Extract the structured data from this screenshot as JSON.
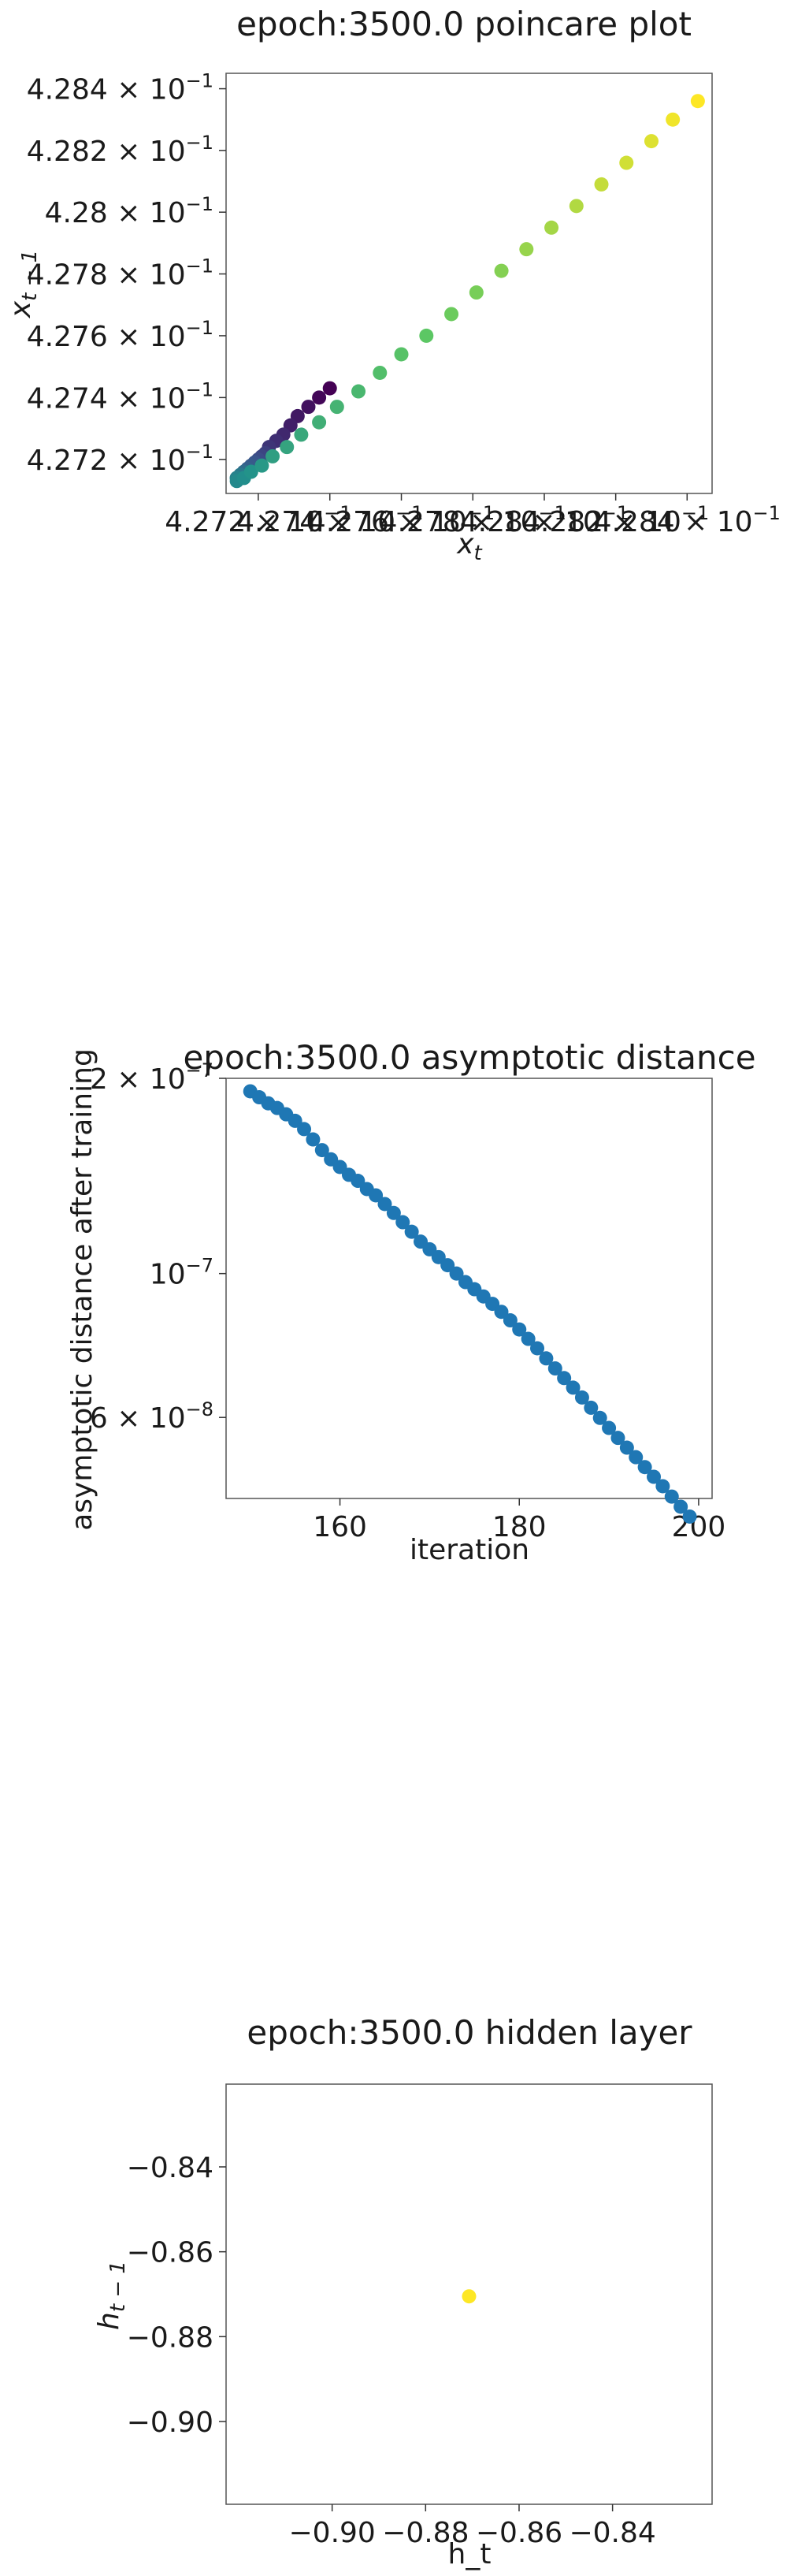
{
  "chart_data": [
    {
      "type": "scatter",
      "title": "epoch:3500.0 poincare plot",
      "xlabel": "x_t",
      "ylabel": "x_{t-1}",
      "scale": "log",
      "xlim": [
        0.42711,
        0.42847
      ],
      "ylim": [
        0.42709,
        0.42845
      ],
      "colormap": "viridis",
      "yticks": [
        {
          "value": 0.4272,
          "label": "4.272 × 10^-1"
        },
        {
          "value": 0.4274,
          "label": "4.274 × 10^-1"
        },
        {
          "value": 0.4276,
          "label": "4.276 × 10^-1"
        },
        {
          "value": 0.4278,
          "label": "4.278 × 10^-1"
        },
        {
          "value": 0.428,
          "label": "4.28 × 10^-1"
        },
        {
          "value": 0.4282,
          "label": "4.282 × 10^-1"
        },
        {
          "value": 0.4284,
          "label": "4.284 × 10^-1"
        }
      ],
      "xticks": [
        {
          "value": 0.4272,
          "label": "4.272 × 10^-1"
        },
        {
          "value": 0.4274,
          "label": "4.274 × 10^-1"
        },
        {
          "value": 0.4276,
          "label": "4.276 × 10^-1"
        },
        {
          "value": 0.4278,
          "label": "4.278 × 10^-1"
        },
        {
          "value": 0.428,
          "label": "4.28 × 10^-1"
        },
        {
          "value": 0.4282,
          "label": "4.282 × 10^-1"
        },
        {
          "value": 0.4284,
          "label": "4.284 × 10^-1"
        }
      ],
      "x": [
        0.4274,
        0.42737,
        0.42734,
        0.42731,
        0.42729,
        0.42727,
        0.42725,
        0.42723,
        0.42722,
        0.42721,
        0.4272,
        0.42719,
        0.42718,
        0.42717,
        0.42716,
        0.42716,
        0.42715,
        0.42715,
        0.42714,
        0.42714,
        0.42714,
        0.42716,
        0.42718,
        0.42721,
        0.42724,
        0.42728,
        0.42732,
        0.42737,
        0.42742,
        0.42748,
        0.42754,
        0.4276,
        0.42767,
        0.42774,
        0.42781,
        0.42788,
        0.42795,
        0.42802,
        0.42809,
        0.42816,
        0.42823,
        0.4283,
        0.42836,
        0.42843
      ],
      "y": [
        0.42743,
        0.4274,
        0.42737,
        0.42734,
        0.42731,
        0.42728,
        0.42726,
        0.42724,
        0.42722,
        0.42721,
        0.4272,
        0.42719,
        0.42718,
        0.42717,
        0.42716,
        0.42716,
        0.42715,
        0.42715,
        0.42714,
        0.42714,
        0.42713,
        0.42714,
        0.42716,
        0.42718,
        0.42721,
        0.42724,
        0.42728,
        0.42732,
        0.42737,
        0.42742,
        0.42748,
        0.42754,
        0.4276,
        0.42767,
        0.42774,
        0.42781,
        0.42788,
        0.42795,
        0.42802,
        0.42809,
        0.42816,
        0.42823,
        0.4283,
        0.42836
      ],
      "color_values": [
        0,
        0.02,
        0.05,
        0.07,
        0.09,
        0.12,
        0.14,
        0.16,
        0.19,
        0.21,
        0.23,
        0.26,
        0.28,
        0.3,
        0.33,
        0.35,
        0.37,
        0.4,
        0.42,
        0.44,
        0.47,
        0.49,
        0.51,
        0.53,
        0.56,
        0.58,
        0.6,
        0.63,
        0.65,
        0.67,
        0.7,
        0.72,
        0.74,
        0.77,
        0.79,
        0.81,
        0.84,
        0.86,
        0.88,
        0.91,
        0.93,
        0.95,
        0.98,
        1.0
      ]
    },
    {
      "type": "scatter",
      "title": "epoch:3500.0 asymptotic distance",
      "xlabel": "iteration",
      "ylabel": "asymptotic distance after training",
      "yscale": "log",
      "xlim": [
        147.3,
        201.5
      ],
      "ylim": [
        4.5e-08,
        2e-07
      ],
      "color": "#1f77b4",
      "xticks": [
        {
          "value": 160,
          "label": "160"
        },
        {
          "value": 180,
          "label": "180"
        },
        {
          "value": 200,
          "label": "200"
        }
      ],
      "yticks": [
        {
          "value": 6e-08,
          "label": "6 × 10^-8"
        },
        {
          "value": 1e-07,
          "label": "10^-7"
        },
        {
          "value": 2e-07,
          "label": "2 × 10^-7"
        }
      ],
      "x": [
        150,
        151,
        152,
        153,
        154,
        155,
        156,
        157,
        158,
        159,
        160,
        161,
        162,
        163,
        164,
        165,
        166,
        167,
        168,
        169,
        170,
        171,
        172,
        173,
        174,
        175,
        176,
        177,
        178,
        179,
        180,
        181,
        182,
        183,
        184,
        185,
        186,
        187,
        188,
        189,
        190,
        191,
        192,
        193,
        194,
        195,
        196,
        197,
        198,
        199
      ],
      "y": [
        1.91e-07,
        1.87e-07,
        1.83e-07,
        1.8e-07,
        1.76e-07,
        1.72e-07,
        1.67e-07,
        1.61e-07,
        1.55e-07,
        1.5e-07,
        1.46e-07,
        1.42e-07,
        1.39e-07,
        1.35e-07,
        1.32e-07,
        1.28e-07,
        1.24e-07,
        1.2e-07,
        1.16e-07,
        1.12e-07,
        1.09e-07,
        1.06e-07,
        1.03e-07,
        1e-07,
        9.7e-08,
        9.46e-08,
        9.22e-08,
        8.98e-08,
        8.73e-08,
        8.47e-08,
        8.2e-08,
        7.93e-08,
        7.67e-08,
        7.4e-08,
        7.14e-08,
        6.9e-08,
        6.67e-08,
        6.44e-08,
        6.21e-08,
        5.99e-08,
        5.78e-08,
        5.58e-08,
        5.39e-08,
        5.21e-08,
        5.03e-08,
        4.86e-08,
        4.7e-08,
        4.53e-08,
        4.37e-08,
        4.22e-08
      ]
    },
    {
      "type": "scatter",
      "title": "epoch:3500.0 hidden layer",
      "xlabel": "h_t",
      "ylabel": "h_{t-1}",
      "xlim": [
        -0.9227,
        -0.8187
      ],
      "ylim": [
        -0.9195,
        -0.8205
      ],
      "color": "#fde725",
      "xticks": [
        {
          "value": -0.9,
          "label": "−0.90"
        },
        {
          "value": -0.88,
          "label": "−0.88"
        },
        {
          "value": -0.86,
          "label": "−0.86"
        },
        {
          "value": -0.84,
          "label": "−0.84"
        }
      ],
      "yticks": [
        {
          "value": -0.84,
          "label": "−0.84"
        },
        {
          "value": -0.86,
          "label": "−0.86"
        },
        {
          "value": -0.88,
          "label": "−0.88"
        },
        {
          "value": -0.9,
          "label": "−0.90"
        }
      ],
      "x": [
        -0.8707
      ],
      "y": [
        -0.8705
      ]
    }
  ]
}
